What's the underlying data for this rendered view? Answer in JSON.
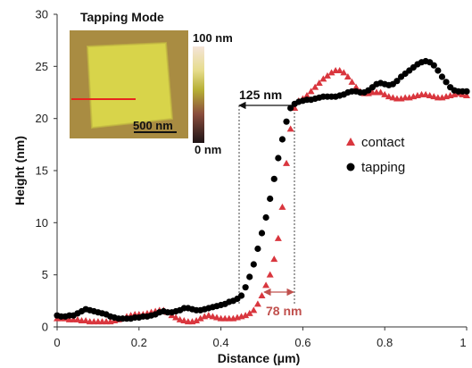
{
  "chart_data": {
    "type": "scatter",
    "xlabel": "Distance (μm)",
    "ylabel": "Height (nm)",
    "xlim": [
      0,
      1
    ],
    "ylim": [
      0,
      30
    ],
    "x_ticks": [
      "0",
      "0.2",
      "0.4",
      "0.6",
      "0.8",
      "1"
    ],
    "y_ticks": [
      "0",
      "5",
      "10",
      "15",
      "20",
      "25",
      "30"
    ],
    "grid": false,
    "legend_position": "right",
    "series": [
      {
        "name": "contact",
        "marker": "triangle",
        "color": "#d9363e",
        "points": [
          [
            0.0,
            0.8
          ],
          [
            0.01,
            0.8
          ],
          [
            0.02,
            0.8
          ],
          [
            0.03,
            0.7
          ],
          [
            0.04,
            0.7
          ],
          [
            0.05,
            0.7
          ],
          [
            0.06,
            0.6
          ],
          [
            0.07,
            0.6
          ],
          [
            0.08,
            0.5
          ],
          [
            0.09,
            0.5
          ],
          [
            0.1,
            0.5
          ],
          [
            0.11,
            0.5
          ],
          [
            0.12,
            0.5
          ],
          [
            0.13,
            0.5
          ],
          [
            0.14,
            0.6
          ],
          [
            0.15,
            0.7
          ],
          [
            0.16,
            0.8
          ],
          [
            0.17,
            1.0
          ],
          [
            0.18,
            1.1
          ],
          [
            0.19,
            1.2
          ],
          [
            0.2,
            1.2
          ],
          [
            0.21,
            1.2
          ],
          [
            0.22,
            1.3
          ],
          [
            0.23,
            1.4
          ],
          [
            0.24,
            1.5
          ],
          [
            0.25,
            1.6
          ],
          [
            0.26,
            1.6
          ],
          [
            0.27,
            1.4
          ],
          [
            0.28,
            1.1
          ],
          [
            0.29,
            0.9
          ],
          [
            0.3,
            0.7
          ],
          [
            0.31,
            0.6
          ],
          [
            0.32,
            0.5
          ],
          [
            0.33,
            0.5
          ],
          [
            0.34,
            0.6
          ],
          [
            0.35,
            0.8
          ],
          [
            0.36,
            1.0
          ],
          [
            0.37,
            1.1
          ],
          [
            0.38,
            1.0
          ],
          [
            0.39,
            0.9
          ],
          [
            0.4,
            0.8
          ],
          [
            0.41,
            0.8
          ],
          [
            0.42,
            0.8
          ],
          [
            0.43,
            0.8
          ],
          [
            0.44,
            0.9
          ],
          [
            0.45,
            1.0
          ],
          [
            0.46,
            1.1
          ],
          [
            0.47,
            1.3
          ],
          [
            0.48,
            1.6
          ],
          [
            0.49,
            2.2
          ],
          [
            0.5,
            3.0
          ],
          [
            0.51,
            4.0
          ],
          [
            0.52,
            5.0
          ],
          [
            0.53,
            6.5
          ],
          [
            0.54,
            8.5
          ],
          [
            0.55,
            11.5
          ],
          [
            0.56,
            15.7
          ],
          [
            0.57,
            19.0
          ],
          [
            0.58,
            21.0
          ],
          [
            0.59,
            21.7
          ],
          [
            0.6,
            21.9
          ],
          [
            0.61,
            22.2
          ],
          [
            0.62,
            22.6
          ],
          [
            0.63,
            23.0
          ],
          [
            0.64,
            23.4
          ],
          [
            0.65,
            23.8
          ],
          [
            0.66,
            24.1
          ],
          [
            0.67,
            24.4
          ],
          [
            0.68,
            24.6
          ],
          [
            0.69,
            24.6
          ],
          [
            0.7,
            24.4
          ],
          [
            0.71,
            24.0
          ],
          [
            0.72,
            23.5
          ],
          [
            0.73,
            23.0
          ],
          [
            0.74,
            22.6
          ],
          [
            0.75,
            22.4
          ],
          [
            0.76,
            22.4
          ],
          [
            0.77,
            22.5
          ],
          [
            0.78,
            22.5
          ],
          [
            0.79,
            22.5
          ],
          [
            0.8,
            22.3
          ],
          [
            0.81,
            22.1
          ],
          [
            0.82,
            22.0
          ],
          [
            0.83,
            21.9
          ],
          [
            0.84,
            21.9
          ],
          [
            0.85,
            22.0
          ],
          [
            0.86,
            22.0
          ],
          [
            0.87,
            22.1
          ],
          [
            0.88,
            22.2
          ],
          [
            0.89,
            22.3
          ],
          [
            0.9,
            22.3
          ],
          [
            0.91,
            22.2
          ],
          [
            0.92,
            22.1
          ],
          [
            0.93,
            22.0
          ],
          [
            0.94,
            22.0
          ],
          [
            0.95,
            22.1
          ],
          [
            0.96,
            22.2
          ],
          [
            0.97,
            22.3
          ],
          [
            0.98,
            22.4
          ],
          [
            0.99,
            22.3
          ],
          [
            1.0,
            22.2
          ]
        ]
      },
      {
        "name": "tapping",
        "marker": "circle",
        "color": "#000000",
        "points": [
          [
            0.0,
            1.1
          ],
          [
            0.01,
            1.0
          ],
          [
            0.02,
            1.0
          ],
          [
            0.03,
            1.1
          ],
          [
            0.04,
            1.1
          ],
          [
            0.05,
            1.3
          ],
          [
            0.06,
            1.5
          ],
          [
            0.07,
            1.7
          ],
          [
            0.08,
            1.6
          ],
          [
            0.09,
            1.5
          ],
          [
            0.1,
            1.4
          ],
          [
            0.11,
            1.3
          ],
          [
            0.12,
            1.2
          ],
          [
            0.13,
            1.0
          ],
          [
            0.14,
            0.9
          ],
          [
            0.15,
            0.8
          ],
          [
            0.16,
            0.8
          ],
          [
            0.17,
            0.8
          ],
          [
            0.18,
            0.8
          ],
          [
            0.19,
            0.9
          ],
          [
            0.2,
            0.9
          ],
          [
            0.21,
            1.0
          ],
          [
            0.22,
            1.0
          ],
          [
            0.23,
            1.1
          ],
          [
            0.24,
            1.2
          ],
          [
            0.25,
            1.4
          ],
          [
            0.26,
            1.5
          ],
          [
            0.27,
            1.4
          ],
          [
            0.28,
            1.4
          ],
          [
            0.29,
            1.5
          ],
          [
            0.3,
            1.6
          ],
          [
            0.31,
            1.8
          ],
          [
            0.32,
            1.8
          ],
          [
            0.33,
            1.7
          ],
          [
            0.34,
            1.6
          ],
          [
            0.35,
            1.6
          ],
          [
            0.36,
            1.7
          ],
          [
            0.37,
            1.8
          ],
          [
            0.38,
            1.9
          ],
          [
            0.39,
            2.0
          ],
          [
            0.4,
            2.1
          ],
          [
            0.41,
            2.2
          ],
          [
            0.42,
            2.4
          ],
          [
            0.43,
            2.5
          ],
          [
            0.44,
            2.7
          ],
          [
            0.45,
            3.0
          ],
          [
            0.46,
            3.8
          ],
          [
            0.47,
            4.8
          ],
          [
            0.48,
            6.0
          ],
          [
            0.49,
            7.5
          ],
          [
            0.5,
            9.0
          ],
          [
            0.51,
            10.5
          ],
          [
            0.52,
            12.3
          ],
          [
            0.53,
            14.2
          ],
          [
            0.54,
            16.2
          ],
          [
            0.55,
            18.0
          ],
          [
            0.56,
            19.7
          ],
          [
            0.57,
            21.0
          ],
          [
            0.58,
            21.4
          ],
          [
            0.59,
            21.6
          ],
          [
            0.6,
            21.7
          ],
          [
            0.61,
            21.8
          ],
          [
            0.62,
            21.8
          ],
          [
            0.63,
            21.9
          ],
          [
            0.64,
            22.0
          ],
          [
            0.65,
            22.1
          ],
          [
            0.66,
            22.1
          ],
          [
            0.67,
            22.1
          ],
          [
            0.68,
            22.1
          ],
          [
            0.69,
            22.2
          ],
          [
            0.7,
            22.3
          ],
          [
            0.71,
            22.5
          ],
          [
            0.72,
            22.6
          ],
          [
            0.73,
            22.6
          ],
          [
            0.74,
            22.5
          ],
          [
            0.75,
            22.5
          ],
          [
            0.76,
            22.7
          ],
          [
            0.77,
            23.0
          ],
          [
            0.78,
            23.3
          ],
          [
            0.79,
            23.4
          ],
          [
            0.8,
            23.3
          ],
          [
            0.81,
            23.2
          ],
          [
            0.82,
            23.3
          ],
          [
            0.83,
            23.6
          ],
          [
            0.84,
            24.0
          ],
          [
            0.85,
            24.3
          ],
          [
            0.86,
            24.6
          ],
          [
            0.87,
            24.9
          ],
          [
            0.88,
            25.2
          ],
          [
            0.89,
            25.4
          ],
          [
            0.9,
            25.5
          ],
          [
            0.91,
            25.4
          ],
          [
            0.92,
            25.1
          ],
          [
            0.93,
            24.6
          ],
          [
            0.94,
            24.0
          ],
          [
            0.95,
            23.5
          ],
          [
            0.96,
            23.0
          ],
          [
            0.97,
            22.7
          ],
          [
            0.98,
            22.6
          ],
          [
            0.99,
            22.6
          ],
          [
            1.0,
            22.6
          ]
        ]
      }
    ],
    "annotations": [
      {
        "text": "125 nm",
        "x_from": 0.445,
        "x_to": 0.575,
        "y": 21.3,
        "color": "#000000"
      },
      {
        "text": "78 nm",
        "x_from": 0.575,
        "x_to": 0.575,
        "y": 3.3,
        "color": "#c0504d"
      }
    ],
    "inset": {
      "title": "Tapping Mode",
      "scale_bar_label": "500 nm",
      "colorbar_max": "100 nm",
      "colorbar_min": "0 nm"
    }
  }
}
